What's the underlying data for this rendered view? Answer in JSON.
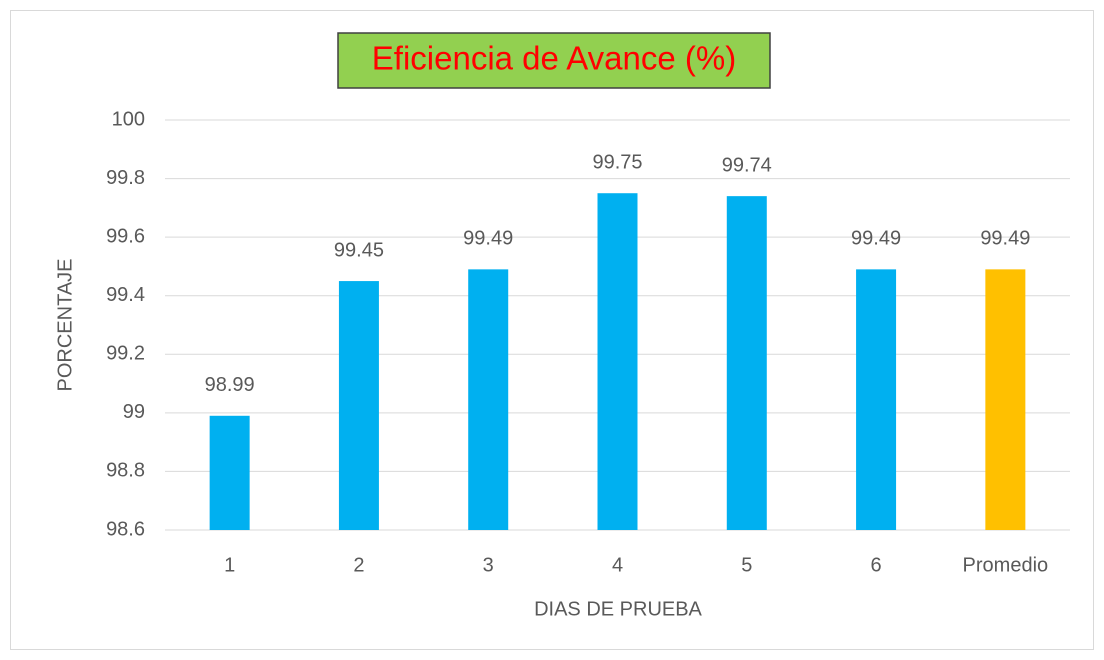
{
  "chart_data": {
    "type": "bar",
    "title": "Eficiencia de Avance (%)",
    "title_color": "#ff0000",
    "title_background": "#92d050",
    "x_label": "DIAS DE PRUEBA",
    "y_label": "PORCENTAJE",
    "categories": [
      "1",
      "2",
      "3",
      "4",
      "5",
      "6",
      "Promedio"
    ],
    "values": [
      98.99,
      99.45,
      99.49,
      99.75,
      99.74,
      99.49,
      99.49
    ],
    "colors": [
      "#00b0f0",
      "#00b0f0",
      "#00b0f0",
      "#00b0f0",
      "#00b0f0",
      "#00b0f0",
      "#ffc000"
    ],
    "ylim": [
      98.6,
      100
    ],
    "yticks": [
      98.6,
      98.8,
      99,
      99.2,
      99.4,
      99.6,
      99.8,
      100
    ],
    "grid": true
  }
}
